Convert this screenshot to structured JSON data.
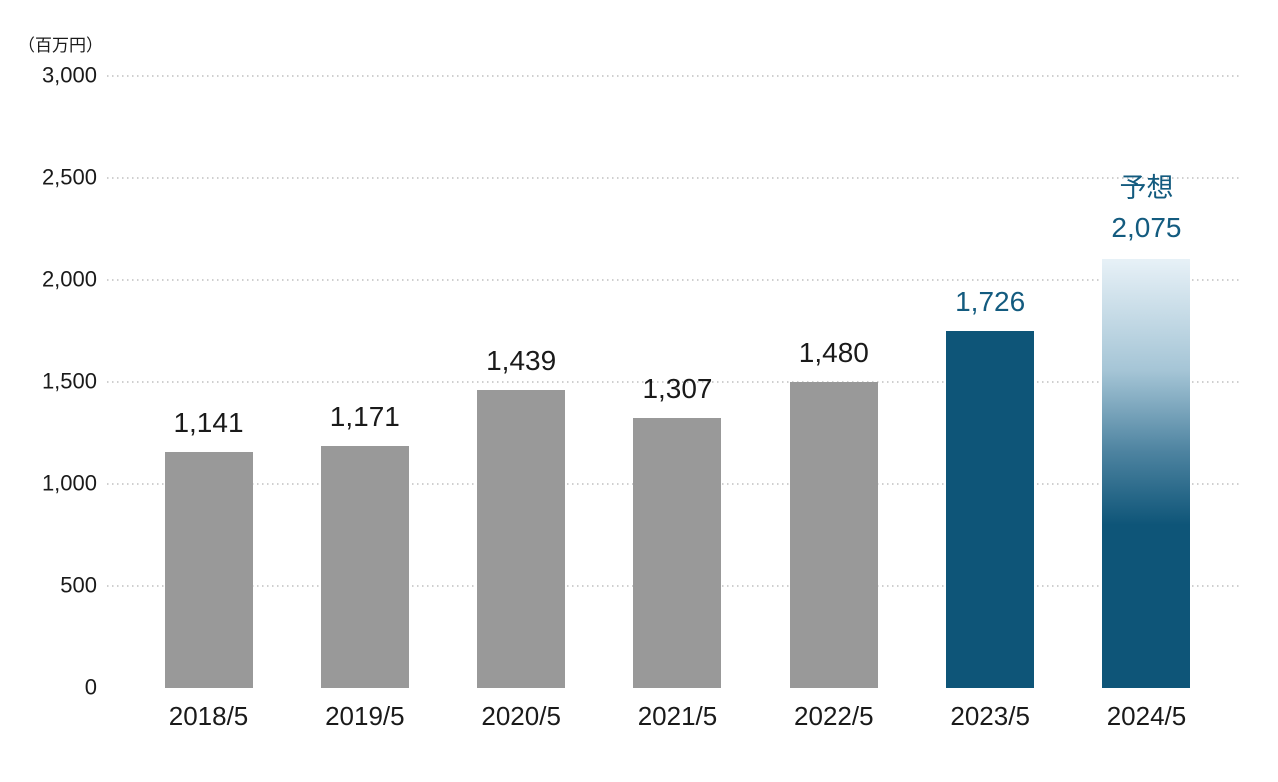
{
  "chart_data": {
    "type": "bar",
    "title": "",
    "unit_label": "（百万円）",
    "categories": [
      "2018/5",
      "2019/5",
      "2020/5",
      "2021/5",
      "2022/5",
      "2023/5",
      "2024/5"
    ],
    "values": [
      1141,
      1171,
      1439,
      1307,
      1480,
      1726,
      2075
    ],
    "value_labels": [
      "1,141",
      "1,171",
      "1,439",
      "1,307",
      "1,480",
      "1,726",
      "2,075"
    ],
    "forecast_label": "予想",
    "forecast_index": 6,
    "highlight_index": 5,
    "y_ticks": [
      {
        "label": "3,000",
        "value": 3000
      },
      {
        "label": "2,500",
        "value": 2500
      },
      {
        "label": "2,000",
        "value": 2000
      },
      {
        "label": "1,500",
        "value": 1500
      },
      {
        "label": "1,000",
        "value": 1000
      },
      {
        "label": "500",
        "value": 500
      },
      {
        "label": "0",
        "value": 0
      }
    ],
    "ylim": [
      0,
      3000
    ],
    "grid": "dotted-horizontal",
    "legend": "none",
    "colors": {
      "bar_default": "#999999",
      "bar_highlight": "#0e5578",
      "bar_forecast_gradient_top": "#e7f1f7",
      "bar_forecast_gradient_mid1": "#a5c5d6",
      "bar_forecast_gradient_mid2": "#4d83a0",
      "bar_forecast_gradient_bottom": "#0e5578",
      "value_label_default": "#1a1a1a",
      "value_label_accent": "#135b7f",
      "axis_text": "#1a1a1a",
      "gridline": "#cfcfcf",
      "background": "#ffffff"
    }
  }
}
